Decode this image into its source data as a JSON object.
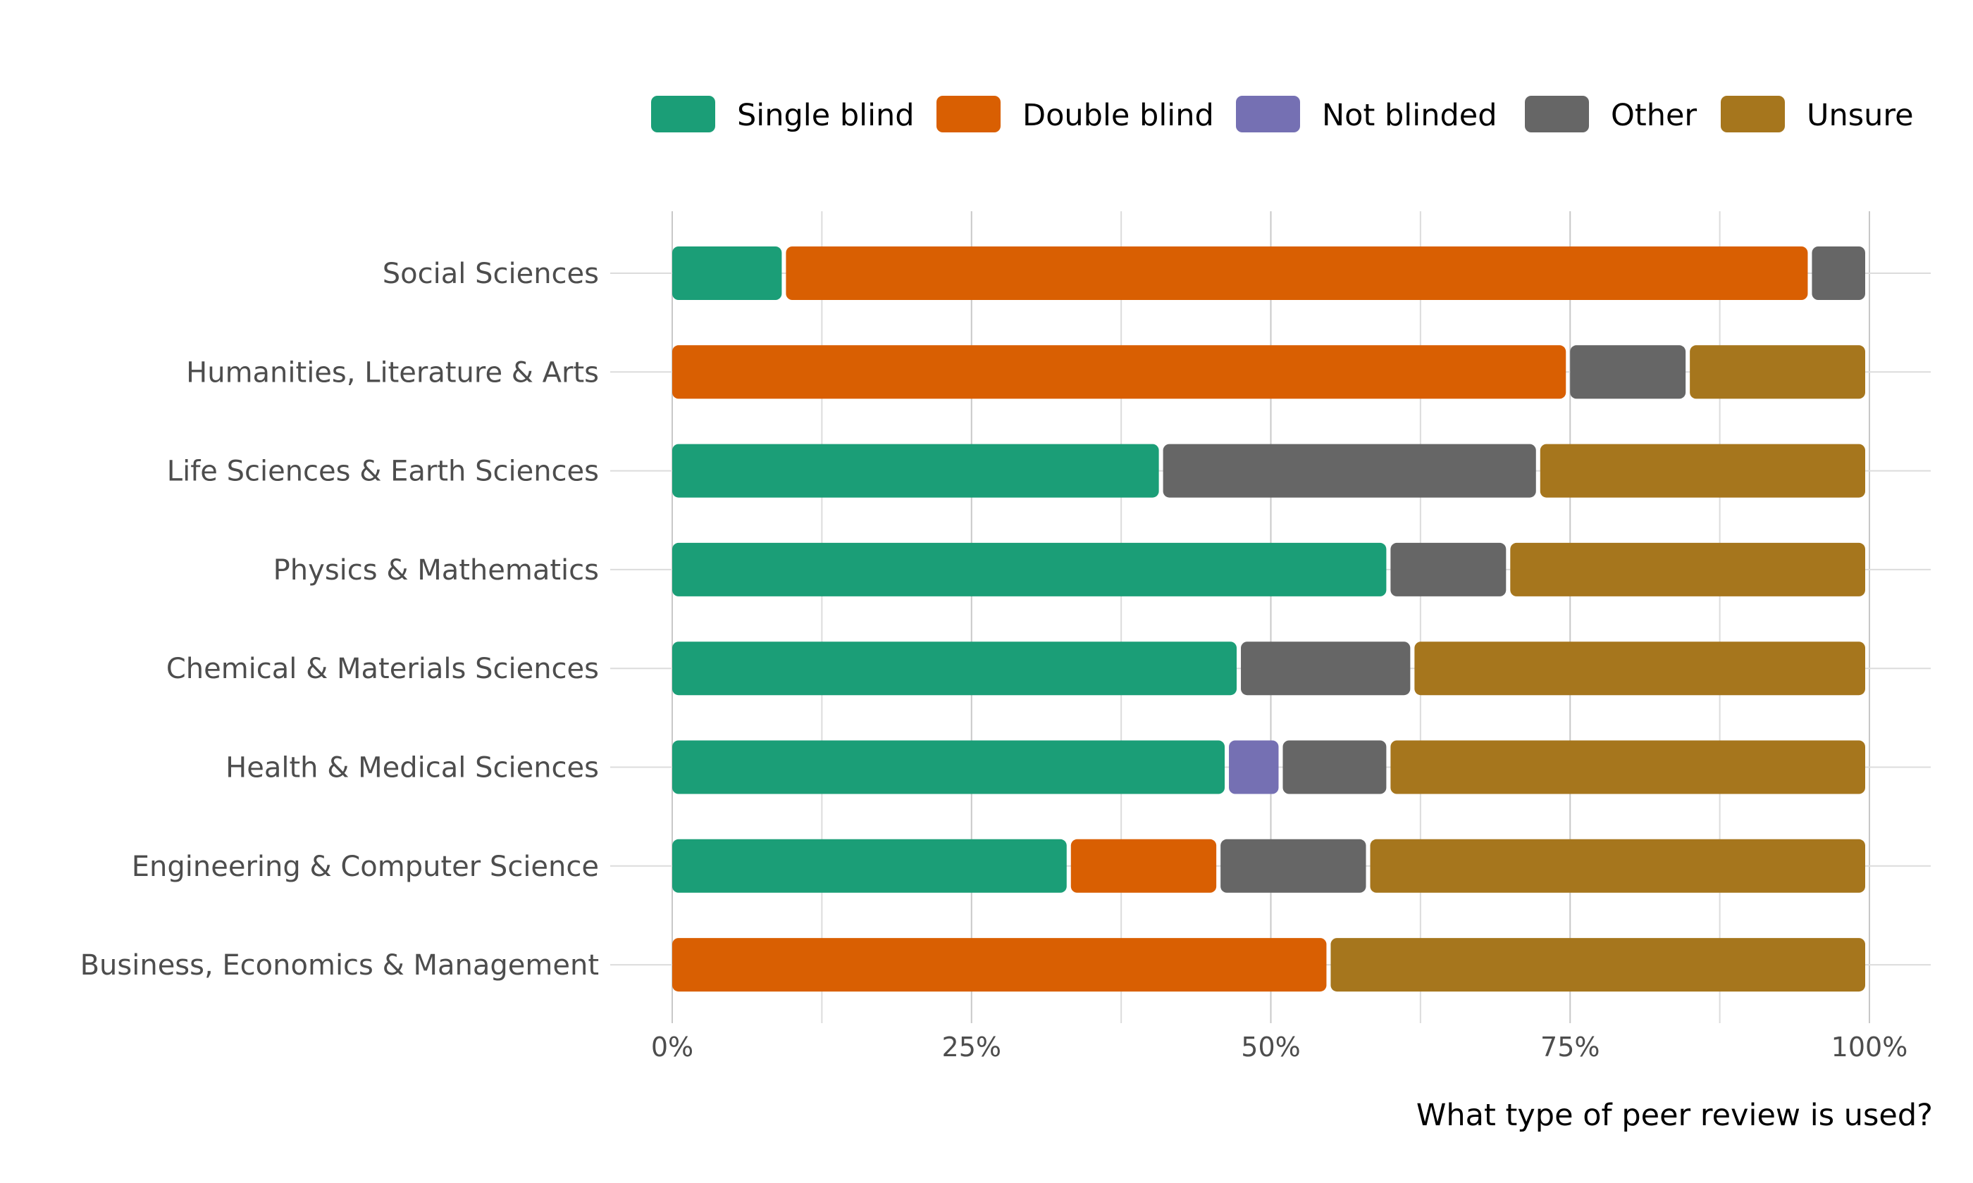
{
  "chart_data": {
    "type": "bar",
    "orientation": "horizontal",
    "stacked": true,
    "categories": [
      "Social Sciences",
      "Humanities, Literature & Arts",
      "Life Sciences & Earth Sciences",
      "Physics & Mathematics",
      "Chemical & Materials Sciences",
      "Health & Medical Sciences",
      "Engineering & Computer Science",
      "Business, Economics & Management"
    ],
    "series": [
      {
        "name": "Single blind",
        "color": "#1b9e77",
        "values": [
          9.5,
          0,
          41,
          60,
          47.5,
          46.5,
          33.3,
          0
        ]
      },
      {
        "name": "Double blind",
        "color": "#d95f02",
        "values": [
          85.7,
          75,
          0,
          0,
          0,
          0,
          12.5,
          55
        ]
      },
      {
        "name": "Not blinded",
        "color": "#7570b3",
        "values": [
          0,
          0,
          0,
          0,
          0,
          4.5,
          0,
          0
        ]
      },
      {
        "name": "Other",
        "color": "#666666",
        "values": [
          4.8,
          10,
          31.5,
          10,
          14.5,
          9,
          12.5,
          0
        ]
      },
      {
        "name": "Unsure",
        "color": "#a6761d",
        "values": [
          0,
          15,
          27.5,
          30,
          38,
          40,
          41.7,
          45
        ]
      }
    ],
    "xlim": [
      0,
      100
    ],
    "x_ticks": [
      "0%",
      "25%",
      "50%",
      "75%",
      "100%"
    ],
    "xlabel": "What type of peer review is used?",
    "ylabel": "",
    "title": "",
    "grid": true,
    "legend_position": "top-right"
  }
}
